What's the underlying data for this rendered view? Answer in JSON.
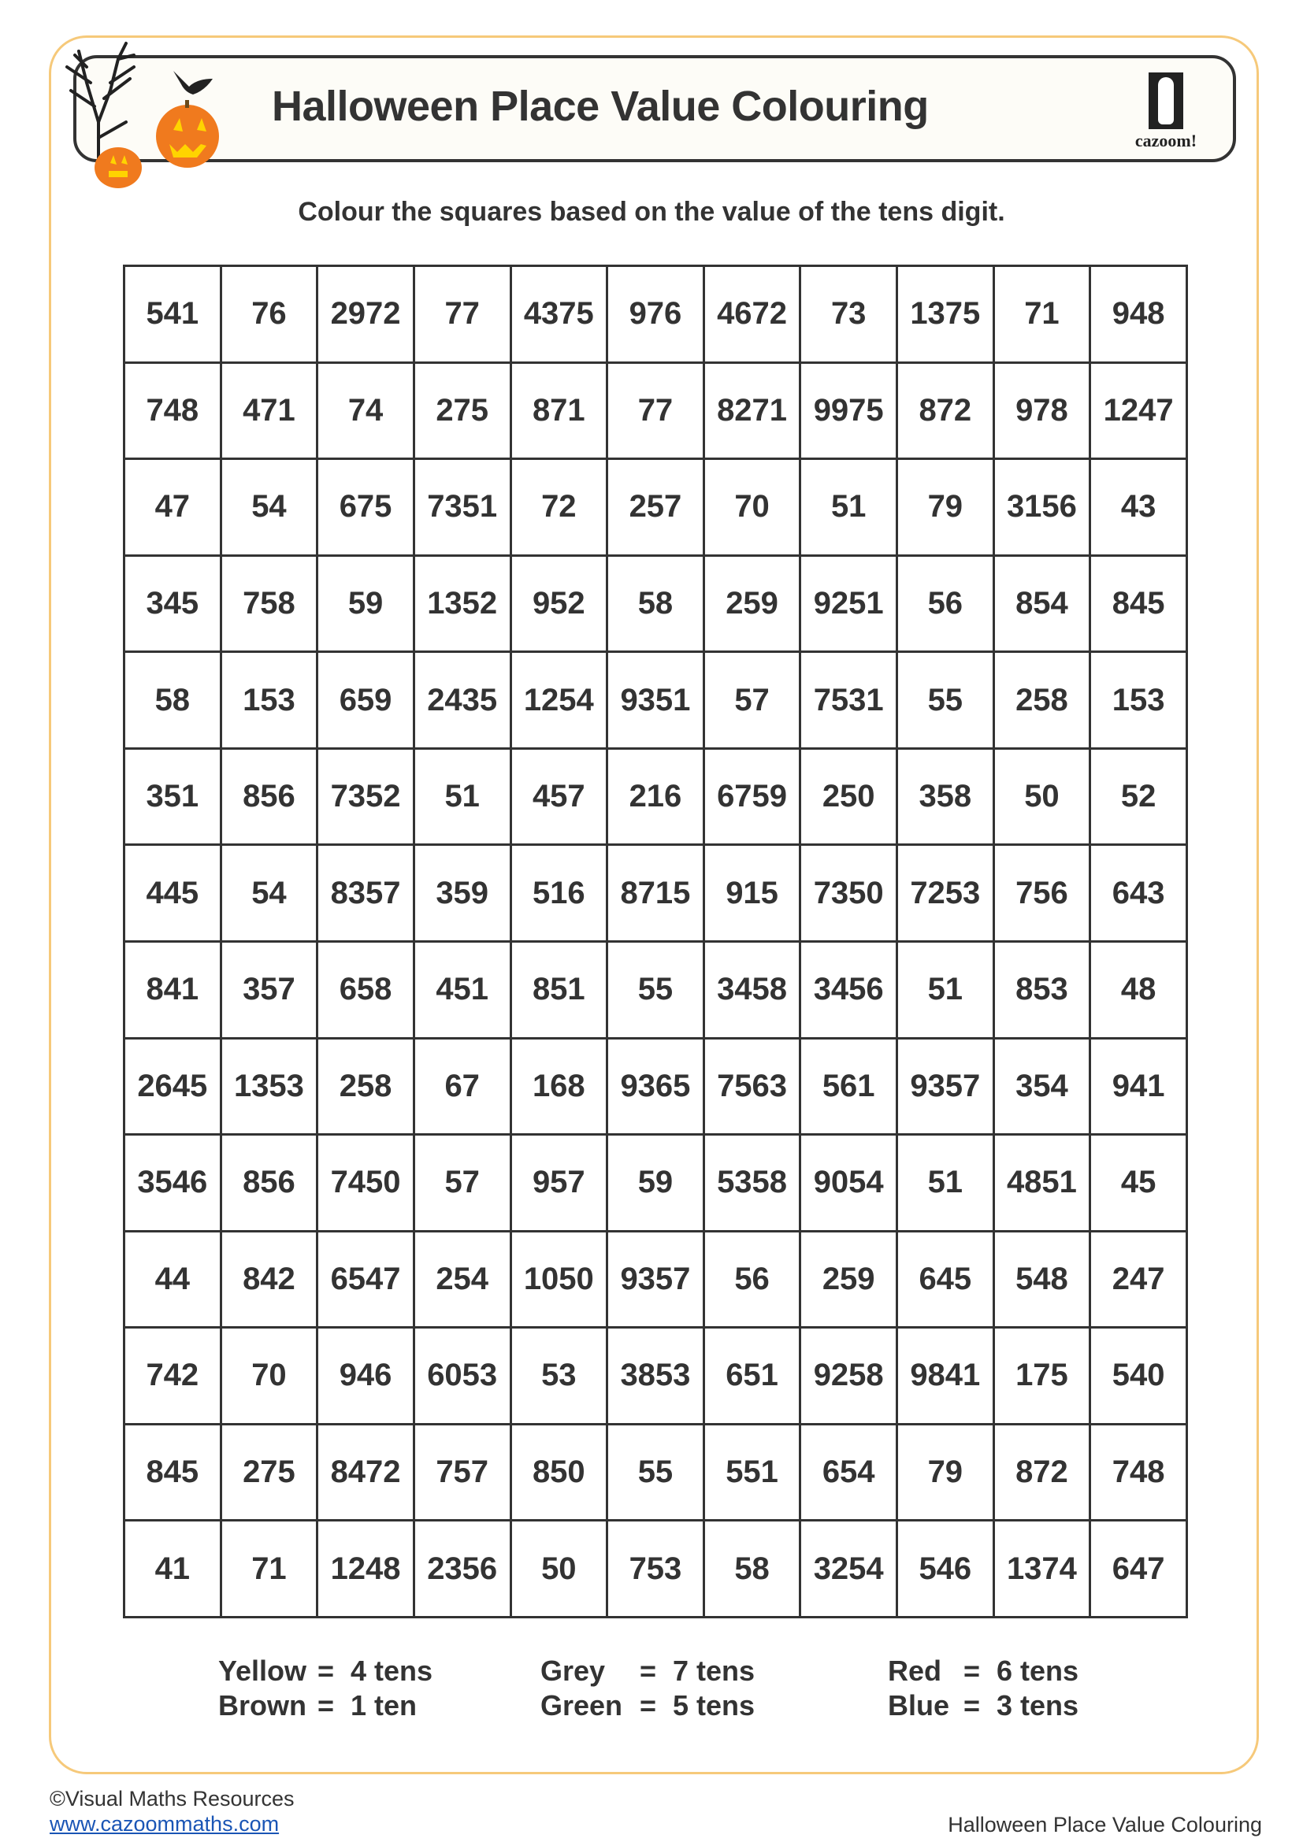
{
  "header": {
    "title": "Halloween Place Value Colouring",
    "logo_text": "cazoom!"
  },
  "instruction": "Colour the squares based on the value of the tens digit.",
  "grid": [
    [
      "541",
      "76",
      "2972",
      "77",
      "4375",
      "976",
      "4672",
      "73",
      "1375",
      "71",
      "948"
    ],
    [
      "748",
      "471",
      "74",
      "275",
      "871",
      "77",
      "8271",
      "9975",
      "872",
      "978",
      "1247"
    ],
    [
      "47",
      "54",
      "675",
      "7351",
      "72",
      "257",
      "70",
      "51",
      "79",
      "3156",
      "43"
    ],
    [
      "345",
      "758",
      "59",
      "1352",
      "952",
      "58",
      "259",
      "9251",
      "56",
      "854",
      "845"
    ],
    [
      "58",
      "153",
      "659",
      "2435",
      "1254",
      "9351",
      "57",
      "7531",
      "55",
      "258",
      "153"
    ],
    [
      "351",
      "856",
      "7352",
      "51",
      "457",
      "216",
      "6759",
      "250",
      "358",
      "50",
      "52"
    ],
    [
      "445",
      "54",
      "8357",
      "359",
      "516",
      "8715",
      "915",
      "7350",
      "7253",
      "756",
      "643"
    ],
    [
      "841",
      "357",
      "658",
      "451",
      "851",
      "55",
      "3458",
      "3456",
      "51",
      "853",
      "48"
    ],
    [
      "2645",
      "1353",
      "258",
      "67",
      "168",
      "9365",
      "7563",
      "561",
      "9357",
      "354",
      "941"
    ],
    [
      "3546",
      "856",
      "7450",
      "57",
      "957",
      "59",
      "5358",
      "9054",
      "51",
      "4851",
      "45"
    ],
    [
      "44",
      "842",
      "6547",
      "254",
      "1050",
      "9357",
      "56",
      "259",
      "645",
      "548",
      "247"
    ],
    [
      "742",
      "70",
      "946",
      "6053",
      "53",
      "3853",
      "651",
      "9258",
      "9841",
      "175",
      "540"
    ],
    [
      "845",
      "275",
      "8472",
      "757",
      "850",
      "55",
      "551",
      "654",
      "79",
      "872",
      "748"
    ],
    [
      "41",
      "71",
      "1248",
      "2356",
      "50",
      "753",
      "58",
      "3254",
      "546",
      "1374",
      "647"
    ]
  ],
  "legend": [
    [
      {
        "colour": "Yellow",
        "eq": "=",
        "value": "4 tens"
      },
      {
        "colour": "Brown",
        "eq": "=",
        "value": "1 ten"
      }
    ],
    [
      {
        "colour": "Grey",
        "eq": "=",
        "value": "7 tens"
      },
      {
        "colour": "Green",
        "eq": "=",
        "value": "5 tens"
      }
    ],
    [
      {
        "colour": "Red",
        "eq": "=",
        "value": "6 tens"
      },
      {
        "colour": "Blue",
        "eq": "=",
        "value": "3 tens"
      }
    ]
  ],
  "footer": {
    "copyright": "©Visual Maths Resources",
    "link": "www.cazoommaths.com",
    "right": "Halloween Place Value Colouring"
  },
  "colors": {
    "frame": "#f6c97a",
    "ink": "#333333",
    "pumpkin": "#f07a1e",
    "link": "#1a55b5"
  }
}
